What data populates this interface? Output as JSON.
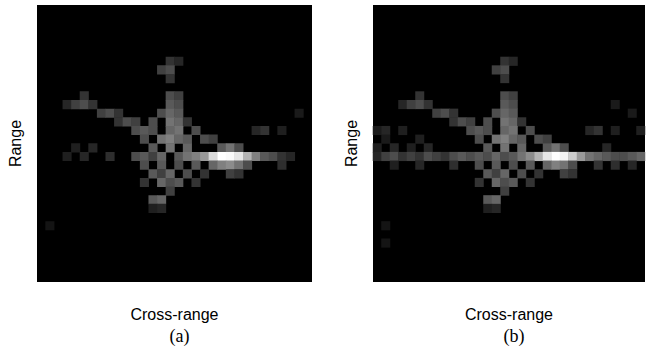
{
  "chart_data": [
    {
      "type": "heatmap",
      "title": "(a)",
      "x_label": "Cross-range",
      "y_label": "Range",
      "columns": 32,
      "rows": 32,
      "zlim": [
        0,
        1
      ],
      "tick_labels": false,
      "grid": false,
      "colors": [
        "#000000",
        "#ffffff"
      ],
      "cells": [
        [
          15,
          25,
          0.2
        ],
        [
          16,
          25,
          0.15
        ],
        [
          14,
          24,
          0.25
        ],
        [
          15,
          24,
          0.3
        ],
        [
          15,
          23,
          0.2
        ],
        [
          5,
          21,
          0.2
        ],
        [
          15,
          21,
          0.3
        ],
        [
          16,
          21,
          0.25
        ],
        [
          3,
          20,
          0.15
        ],
        [
          4,
          20,
          0.25
        ],
        [
          5,
          20,
          0.3
        ],
        [
          6,
          20,
          0.2
        ],
        [
          15,
          20,
          0.35
        ],
        [
          16,
          20,
          0.3
        ],
        [
          7,
          19,
          0.25
        ],
        [
          8,
          19,
          0.3
        ],
        [
          9,
          19,
          0.2
        ],
        [
          14,
          19,
          0.3
        ],
        [
          15,
          19,
          0.4
        ],
        [
          16,
          19,
          0.35
        ],
        [
          30,
          19,
          0.1
        ],
        [
          9,
          18,
          0.2
        ],
        [
          10,
          18,
          0.3
        ],
        [
          11,
          18,
          0.25
        ],
        [
          13,
          18,
          0.3
        ],
        [
          15,
          18,
          0.45
        ],
        [
          16,
          18,
          0.4
        ],
        [
          17,
          18,
          0.2
        ],
        [
          11,
          17,
          0.3
        ],
        [
          12,
          17,
          0.35
        ],
        [
          13,
          17,
          0.3
        ],
        [
          15,
          17,
          0.4
        ],
        [
          16,
          17,
          0.45
        ],
        [
          18,
          17,
          0.3
        ],
        [
          25,
          17,
          0.15
        ],
        [
          26,
          17,
          0.2
        ],
        [
          28,
          17,
          0.12
        ],
        [
          12,
          16,
          0.3
        ],
        [
          14,
          16,
          0.45
        ],
        [
          15,
          16,
          0.5
        ],
        [
          16,
          16,
          0.4
        ],
        [
          17,
          16,
          0.35
        ],
        [
          19,
          16,
          0.3
        ],
        [
          20,
          16,
          0.25
        ],
        [
          4,
          15,
          0.12
        ],
        [
          6,
          15,
          0.15
        ],
        [
          13,
          15,
          0.35
        ],
        [
          15,
          15,
          0.45
        ],
        [
          17,
          15,
          0.4
        ],
        [
          21,
          15,
          0.35
        ],
        [
          22,
          15,
          0.45
        ],
        [
          23,
          15,
          0.3
        ],
        [
          3,
          14,
          0.12
        ],
        [
          5,
          14,
          0.15
        ],
        [
          8,
          14,
          0.18
        ],
        [
          11,
          14,
          0.3
        ],
        [
          12,
          14,
          0.35
        ],
        [
          13,
          14,
          0.25
        ],
        [
          14,
          14,
          0.4
        ],
        [
          16,
          14,
          0.35
        ],
        [
          17,
          14,
          0.45
        ],
        [
          18,
          14,
          0.5
        ],
        [
          19,
          14,
          0.6
        ],
        [
          20,
          14,
          0.85
        ],
        [
          21,
          14,
          1.0
        ],
        [
          22,
          14,
          0.98
        ],
        [
          23,
          14,
          0.9
        ],
        [
          24,
          14,
          0.7
        ],
        [
          25,
          14,
          0.5
        ],
        [
          26,
          14,
          0.35
        ],
        [
          27,
          14,
          0.3
        ],
        [
          28,
          14,
          0.2
        ],
        [
          29,
          14,
          0.15
        ],
        [
          12,
          13,
          0.3
        ],
        [
          14,
          13,
          0.35
        ],
        [
          16,
          13,
          0.3
        ],
        [
          18,
          13,
          0.35
        ],
        [
          20,
          13,
          0.4
        ],
        [
          21,
          13,
          0.5
        ],
        [
          22,
          13,
          0.55
        ],
        [
          23,
          13,
          0.45
        ],
        [
          24,
          13,
          0.3
        ],
        [
          28,
          13,
          0.18
        ],
        [
          13,
          12,
          0.35
        ],
        [
          14,
          12,
          0.25
        ],
        [
          15,
          12,
          0.4
        ],
        [
          17,
          12,
          0.3
        ],
        [
          19,
          12,
          0.2
        ],
        [
          22,
          12,
          0.25
        ],
        [
          23,
          12,
          0.2
        ],
        [
          12,
          11,
          0.2
        ],
        [
          14,
          11,
          0.4
        ],
        [
          15,
          11,
          0.3
        ],
        [
          16,
          11,
          0.35
        ],
        [
          18,
          11,
          0.2
        ],
        [
          15,
          10,
          0.25
        ],
        [
          13,
          9,
          0.35
        ],
        [
          14,
          9,
          0.4
        ],
        [
          13,
          8,
          0.12
        ],
        [
          14,
          8,
          0.15
        ],
        [
          1,
          6,
          0.08
        ]
      ]
    },
    {
      "type": "heatmap",
      "title": "(b)",
      "x_label": "Cross-range",
      "y_label": "Range",
      "columns": 32,
      "rows": 32,
      "zlim": [
        0,
        1
      ],
      "tick_labels": false,
      "grid": false,
      "colors": [
        "#000000",
        "#ffffff"
      ],
      "cells": [
        [
          15,
          25,
          0.2
        ],
        [
          16,
          25,
          0.15
        ],
        [
          14,
          24,
          0.25
        ],
        [
          15,
          24,
          0.3
        ],
        [
          15,
          23,
          0.2
        ],
        [
          5,
          21,
          0.2
        ],
        [
          15,
          21,
          0.3
        ],
        [
          16,
          21,
          0.25
        ],
        [
          3,
          20,
          0.15
        ],
        [
          4,
          20,
          0.25
        ],
        [
          5,
          20,
          0.3
        ],
        [
          6,
          20,
          0.2
        ],
        [
          15,
          20,
          0.35
        ],
        [
          16,
          20,
          0.3
        ],
        [
          28,
          20,
          0.1
        ],
        [
          7,
          19,
          0.25
        ],
        [
          8,
          19,
          0.3
        ],
        [
          9,
          19,
          0.2
        ],
        [
          14,
          19,
          0.3
        ],
        [
          15,
          19,
          0.4
        ],
        [
          16,
          19,
          0.35
        ],
        [
          30,
          19,
          0.1
        ],
        [
          9,
          18,
          0.2
        ],
        [
          10,
          18,
          0.3
        ],
        [
          11,
          18,
          0.25
        ],
        [
          13,
          18,
          0.3
        ],
        [
          15,
          18,
          0.45
        ],
        [
          16,
          18,
          0.4
        ],
        [
          17,
          18,
          0.2
        ],
        [
          0,
          17,
          0.1
        ],
        [
          1,
          17,
          0.15
        ],
        [
          3,
          17,
          0.12
        ],
        [
          11,
          17,
          0.3
        ],
        [
          12,
          17,
          0.35
        ],
        [
          13,
          17,
          0.3
        ],
        [
          15,
          17,
          0.4
        ],
        [
          16,
          17,
          0.45
        ],
        [
          18,
          17,
          0.3
        ],
        [
          25,
          17,
          0.15
        ],
        [
          26,
          17,
          0.2
        ],
        [
          28,
          17,
          0.12
        ],
        [
          31,
          17,
          0.12
        ],
        [
          1,
          16,
          0.1
        ],
        [
          5,
          16,
          0.12
        ],
        [
          12,
          16,
          0.3
        ],
        [
          14,
          16,
          0.45
        ],
        [
          15,
          16,
          0.5
        ],
        [
          16,
          16,
          0.4
        ],
        [
          17,
          16,
          0.35
        ],
        [
          19,
          16,
          0.3
        ],
        [
          20,
          16,
          0.25
        ],
        [
          0,
          15,
          0.12
        ],
        [
          2,
          15,
          0.15
        ],
        [
          4,
          15,
          0.12
        ],
        [
          6,
          15,
          0.15
        ],
        [
          13,
          15,
          0.35
        ],
        [
          15,
          15,
          0.45
        ],
        [
          17,
          15,
          0.4
        ],
        [
          20,
          15,
          0.35
        ],
        [
          21,
          15,
          0.45
        ],
        [
          22,
          15,
          0.3
        ],
        [
          27,
          15,
          0.15
        ],
        [
          0,
          14,
          0.15
        ],
        [
          1,
          14,
          0.25
        ],
        [
          2,
          14,
          0.3
        ],
        [
          3,
          14,
          0.2
        ],
        [
          4,
          14,
          0.25
        ],
        [
          5,
          14,
          0.2
        ],
        [
          6,
          14,
          0.3
        ],
        [
          7,
          14,
          0.25
        ],
        [
          8,
          14,
          0.2
        ],
        [
          9,
          14,
          0.3
        ],
        [
          10,
          14,
          0.35
        ],
        [
          11,
          14,
          0.3
        ],
        [
          12,
          14,
          0.35
        ],
        [
          13,
          14,
          0.3
        ],
        [
          14,
          14,
          0.4
        ],
        [
          15,
          14,
          0.3
        ],
        [
          16,
          14,
          0.35
        ],
        [
          17,
          14,
          0.45
        ],
        [
          18,
          14,
          0.55
        ],
        [
          19,
          14,
          0.7
        ],
        [
          20,
          14,
          0.9
        ],
        [
          21,
          14,
          1.0
        ],
        [
          22,
          14,
          0.95
        ],
        [
          23,
          14,
          0.8
        ],
        [
          24,
          14,
          0.6
        ],
        [
          25,
          14,
          0.45
        ],
        [
          26,
          14,
          0.4
        ],
        [
          27,
          14,
          0.35
        ],
        [
          28,
          14,
          0.3
        ],
        [
          29,
          14,
          0.3
        ],
        [
          30,
          14,
          0.35
        ],
        [
          31,
          14,
          0.4
        ],
        [
          2,
          13,
          0.12
        ],
        [
          5,
          13,
          0.15
        ],
        [
          9,
          13,
          0.18
        ],
        [
          12,
          13,
          0.3
        ],
        [
          14,
          13,
          0.35
        ],
        [
          16,
          13,
          0.3
        ],
        [
          18,
          13,
          0.35
        ],
        [
          20,
          13,
          0.4
        ],
        [
          21,
          13,
          0.5
        ],
        [
          22,
          13,
          0.45
        ],
        [
          23,
          13,
          0.3
        ],
        [
          26,
          13,
          0.2
        ],
        [
          28,
          13,
          0.18
        ],
        [
          30,
          13,
          0.15
        ],
        [
          13,
          12,
          0.35
        ],
        [
          14,
          12,
          0.25
        ],
        [
          15,
          12,
          0.4
        ],
        [
          17,
          12,
          0.3
        ],
        [
          19,
          12,
          0.2
        ],
        [
          22,
          12,
          0.25
        ],
        [
          23,
          12,
          0.2
        ],
        [
          12,
          11,
          0.2
        ],
        [
          14,
          11,
          0.4
        ],
        [
          15,
          11,
          0.3
        ],
        [
          16,
          11,
          0.35
        ],
        [
          18,
          11,
          0.2
        ],
        [
          15,
          10,
          0.25
        ],
        [
          13,
          9,
          0.35
        ],
        [
          14,
          9,
          0.4
        ],
        [
          13,
          8,
          0.12
        ],
        [
          14,
          8,
          0.15
        ],
        [
          1,
          6,
          0.08
        ],
        [
          1,
          4,
          0.08
        ]
      ]
    }
  ]
}
